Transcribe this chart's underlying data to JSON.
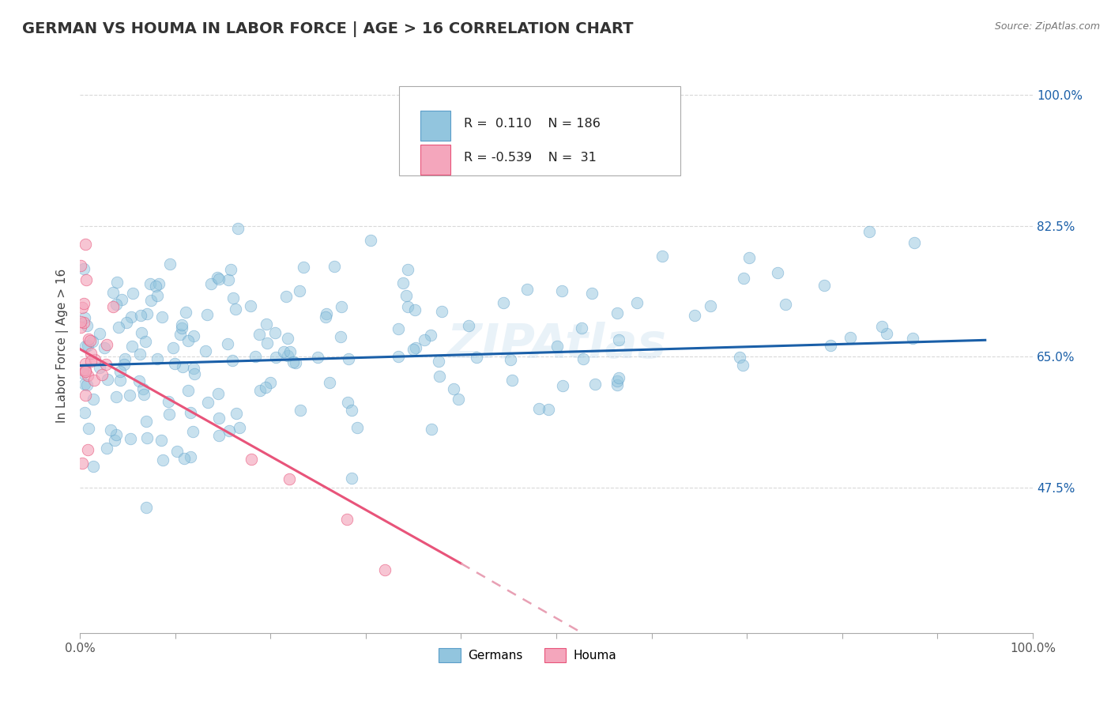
{
  "title": "GERMAN VS HOUMA IN LABOR FORCE | AGE > 16 CORRELATION CHART",
  "source_text": "Source: ZipAtlas.com",
  "ylabel": "In Labor Force | Age > 16",
  "watermark": "ZIPAtlas",
  "x_min": 0.0,
  "x_max": 1.0,
  "y_min": 0.28,
  "y_max": 1.05,
  "y_ticks": [
    0.475,
    0.65,
    0.825,
    1.0
  ],
  "y_tick_labels": [
    "47.5%",
    "65.0%",
    "82.5%",
    "100.0%"
  ],
  "german_R": 0.11,
  "german_N": 186,
  "houma_R": -0.539,
  "houma_N": 31,
  "german_color": "#92c5de",
  "german_edge_color": "#5b9ec9",
  "houma_color": "#f4a6bc",
  "houma_edge_color": "#e8547a",
  "trend_german_color": "#1a5fa8",
  "trend_houma_color": "#e8547a",
  "trend_dashed_color": "#e8a0b4",
  "background_color": "#ffffff",
  "grid_color": "#d0d0d0",
  "title_color": "#333333",
  "marker_size": 110,
  "marker_alpha": 0.5,
  "figsize": [
    14.06,
    8.92
  ],
  "dpi": 100
}
